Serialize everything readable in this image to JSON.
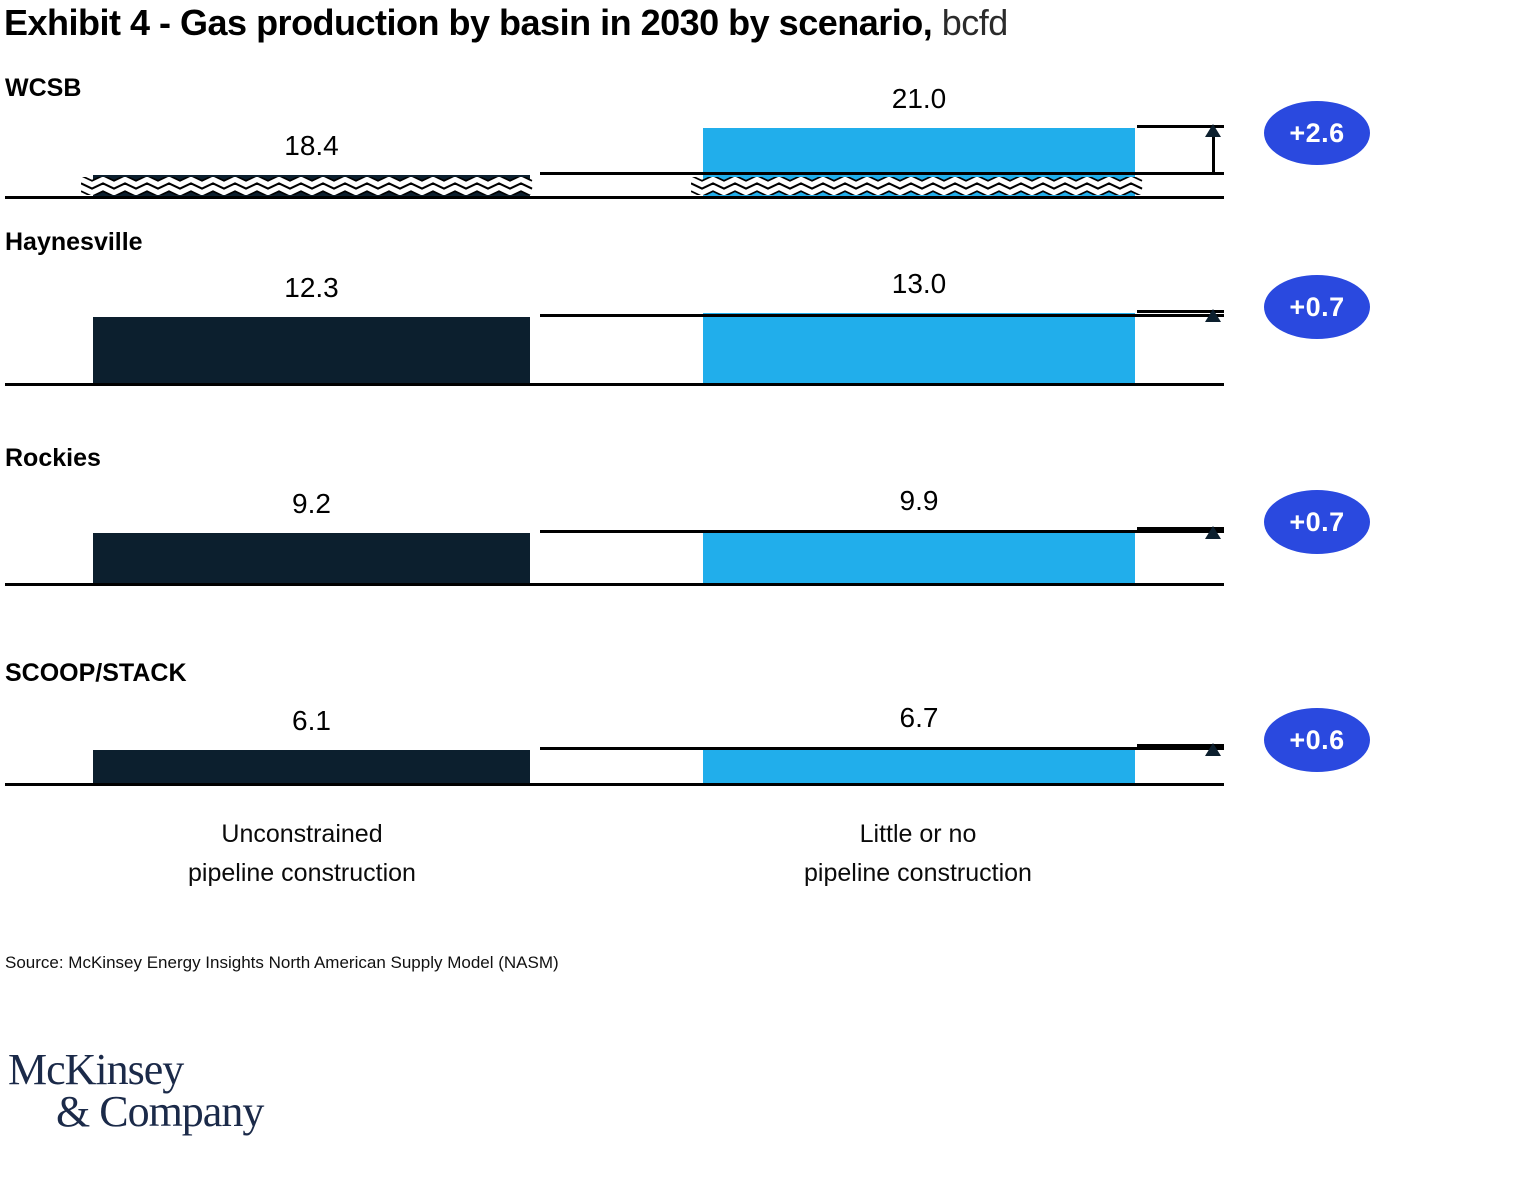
{
  "title": {
    "main": "Exhibit 4 - Gas production by basin in 2030 by scenario,",
    "unit": "bcfd"
  },
  "chart_data": {
    "type": "bar",
    "unit": "bcfd",
    "title": "Gas production by basin in 2030 by scenario",
    "categories": [
      "WCSB",
      "Haynesville",
      "Rockies",
      "SCOOP/STACK"
    ],
    "series": [
      {
        "name": "Unconstrained pipeline construction",
        "values": [
          18.4,
          12.3,
          9.2,
          6.1
        ]
      },
      {
        "name": "Little or no pipeline construction",
        "values": [
          21.0,
          13.0,
          9.9,
          6.7
        ]
      }
    ],
    "deltas": [
      2.6,
      0.7,
      0.7,
      0.6
    ],
    "rows": [
      {
        "basin": "WCSB",
        "left_label": "18.4",
        "right_label": "21.0",
        "delta_label": "+2.6",
        "broken_axis": true
      },
      {
        "basin": "Haynesville",
        "left_label": "12.3",
        "right_label": "13.0",
        "delta_label": "+0.7",
        "broken_axis": false
      },
      {
        "basin": "Rockies",
        "left_label": "9.2",
        "right_label": "9.9",
        "delta_label": "+0.7",
        "broken_axis": false
      },
      {
        "basin": "SCOOP/STACK",
        "left_label": "6.1",
        "right_label": "6.7",
        "delta_label": "+0.6",
        "broken_axis": false
      }
    ]
  },
  "columns": [
    {
      "label_line1": "Unconstrained",
      "label_line2": "pipeline construction"
    },
    {
      "label_line1": "Little or no",
      "label_line2": "pipeline construction"
    }
  ],
  "source": "Source: McKinsey Energy Insights North American Supply Model (NASM)",
  "logo": {
    "line1": "McKinsey",
    "line2": "& Company"
  },
  "colors": {
    "dark_bar": "#0C1F2E",
    "light_bar": "#21AEEB",
    "badge": "#2A49DF",
    "badge_text": "#FFFFFF",
    "line": "#000000",
    "logo_text": "#1B2A49"
  }
}
